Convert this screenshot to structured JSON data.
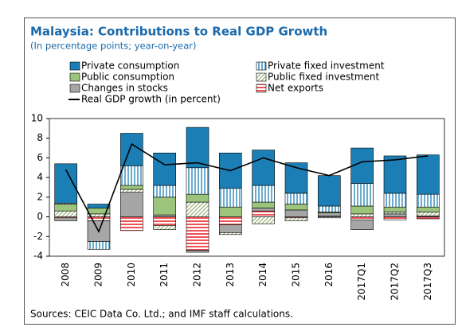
{
  "chart_data": {
    "type": "bar",
    "stacked": true,
    "title": "Malaysia: Contributions to Real GDP Growth",
    "subtitle": "(In percentage points; year-on-year)",
    "source": "Sources: CEIC Data Co. Ltd.; and IMF staff calculations.",
    "categories": [
      "2008",
      "2009",
      "2010",
      "2011",
      "2012",
      "2013",
      "2014",
      "2015",
      "2016",
      "2017Q1",
      "2017Q2",
      "2017Q3"
    ],
    "series": [
      {
        "name": "Private consumption",
        "color": "#1b7fb5",
        "values": [
          4.0,
          0.4,
          3.3,
          3.3,
          4.1,
          3.6,
          3.6,
          3.1,
          3.1,
          3.6,
          3.8,
          4.0
        ]
      },
      {
        "name": "Private fixed investment",
        "color": "#1b7fb5",
        "pattern": "vertical",
        "values": [
          0.1,
          -0.8,
          2.0,
          1.2,
          2.7,
          1.9,
          1.7,
          1.1,
          0.6,
          2.3,
          1.4,
          1.3
        ]
      },
      {
        "name": "Public consumption",
        "color": "#9cc47c",
        "values": [
          0.7,
          0.6,
          0.4,
          1.8,
          0.8,
          1.0,
          0.6,
          0.6,
          0.1,
          0.8,
          0.5,
          0.5
        ]
      },
      {
        "name": "Public fixed investment",
        "color": "#9cb07c",
        "pattern": "diagonal",
        "values": [
          0.6,
          0.3,
          0.3,
          -0.4,
          1.5,
          -0.2,
          -0.7,
          -0.3,
          -0.1,
          0.3,
          0.2,
          0.4
        ]
      },
      {
        "name": "Changes in stocks",
        "color": "#a6a6a6",
        "values": [
          -0.3,
          -2.1,
          2.5,
          0.2,
          -0.2,
          -0.8,
          0.3,
          0.7,
          0.3,
          -1.0,
          0.3,
          0.1
        ]
      },
      {
        "name": "Net exports",
        "color": "#e8262c",
        "pattern": "horizontal",
        "values": [
          -0.1,
          -0.4,
          -1.4,
          -0.9,
          -3.4,
          -0.8,
          0.6,
          -0.1,
          0.1,
          -0.3,
          -0.3,
          -0.2
        ]
      },
      {
        "name": "Real GDP growth (in percent)",
        "type": "line",
        "color": "#000000",
        "values": [
          4.8,
          -1.5,
          7.4,
          5.3,
          5.5,
          4.7,
          6.0,
          5.0,
          4.2,
          5.6,
          5.8,
          6.2
        ]
      }
    ],
    "ylim": [
      -4,
      10
    ],
    "yticks": [
      -4,
      -2,
      0,
      2,
      4,
      6,
      8,
      10
    ]
  }
}
